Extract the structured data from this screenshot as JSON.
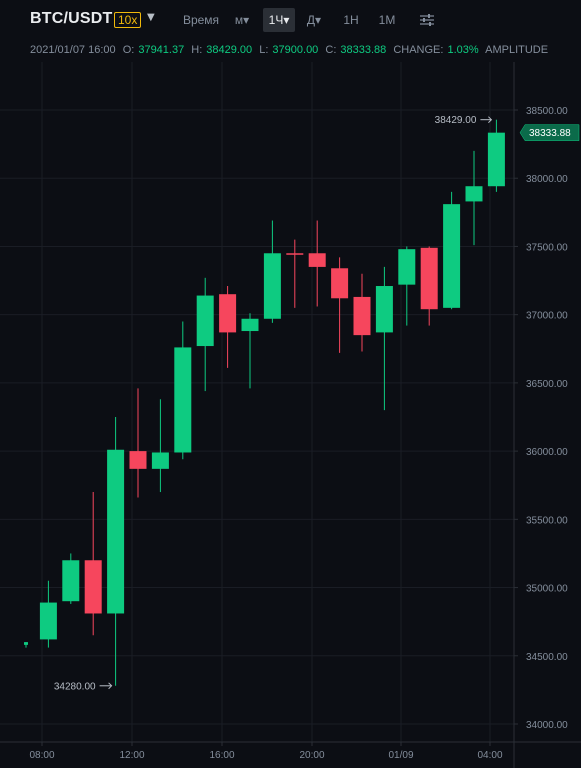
{
  "header": {
    "pair": "BTC/USDT",
    "leverage": "10x",
    "caret": "▼",
    "timeframes": [
      "Время",
      "м▾",
      "1Ч▾",
      "Д▾",
      "1Н",
      "1М"
    ],
    "active_timeframe": "1Ч▾",
    "settings_icon": "sliders-icon"
  },
  "ohlc": {
    "datetime": "2021/01/07 16:00",
    "open_label": "O:",
    "open": "37941.37",
    "high_label": "H:",
    "high": "38429.00",
    "low_label": "L:",
    "low": "37900.00",
    "close_label": "C:",
    "close": "38333.88",
    "change_label": "CHANGE:",
    "change": "1.03%",
    "amplitude_label": "AMPLITUDE"
  },
  "colors": {
    "up": "#0ecb81",
    "down": "#f6465d",
    "grid": "#1a1d25",
    "axis_text": "#848e9c",
    "last_price_bg": "#0b6b4a"
  },
  "chart_data": {
    "type": "candlestick",
    "x_ticks": [
      "08:00",
      "12:00",
      "16:00",
      "20:00",
      "01/09",
      "04:00"
    ],
    "y_ticks": [
      "38500.00",
      "38000.00",
      "37500.00",
      "37000.00",
      "36500.00",
      "36000.00",
      "35500.00",
      "35000.00",
      "34500.00",
      "34000.00"
    ],
    "y_tick_values": [
      38500,
      38000,
      37500,
      37000,
      36500,
      36000,
      35500,
      35000,
      34500,
      34000
    ],
    "ylim": [
      33900,
      38720
    ],
    "candles": [
      {
        "o": 34580,
        "h": 34600,
        "l": 34560,
        "c": 34600
      },
      {
        "o": 34620,
        "h": 35050,
        "l": 34560,
        "c": 34890
      },
      {
        "o": 34900,
        "h": 35250,
        "l": 34880,
        "c": 35200
      },
      {
        "o": 35200,
        "h": 35700,
        "l": 34650,
        "c": 34810
      },
      {
        "o": 34810,
        "h": 36250,
        "l": 34280,
        "c": 36010
      },
      {
        "o": 36000,
        "h": 36460,
        "l": 35660,
        "c": 35870
      },
      {
        "o": 35870,
        "h": 36380,
        "l": 35700,
        "c": 35990
      },
      {
        "o": 35990,
        "h": 36950,
        "l": 35940,
        "c": 36760
      },
      {
        "o": 36770,
        "h": 37270,
        "l": 36440,
        "c": 37140
      },
      {
        "o": 37150,
        "h": 37210,
        "l": 36610,
        "c": 36870
      },
      {
        "o": 36880,
        "h": 37010,
        "l": 36460,
        "c": 36970
      },
      {
        "o": 36970,
        "h": 37690,
        "l": 36940,
        "c": 37450
      },
      {
        "o": 37450,
        "h": 37550,
        "l": 37050,
        "c": 37440
      },
      {
        "o": 37450,
        "h": 37690,
        "l": 37060,
        "c": 37350
      },
      {
        "o": 37340,
        "h": 37420,
        "l": 36720,
        "c": 37120
      },
      {
        "o": 37130,
        "h": 37300,
        "l": 36730,
        "c": 36850
      },
      {
        "o": 36870,
        "h": 37350,
        "l": 36300,
        "c": 37210
      },
      {
        "o": 37220,
        "h": 37500,
        "l": 36920,
        "c": 37480
      },
      {
        "o": 37490,
        "h": 37500,
        "l": 36920,
        "c": 37040
      },
      {
        "o": 37050,
        "h": 37900,
        "l": 37040,
        "c": 37810
      },
      {
        "o": 37830,
        "h": 38200,
        "l": 37510,
        "c": 37941.37
      },
      {
        "o": 37941.37,
        "h": 38429,
        "l": 37900,
        "c": 38333.88
      }
    ],
    "high_marker": "38429.00",
    "low_marker": "34280.00",
    "last_price": "38333.88",
    "grid": true
  }
}
